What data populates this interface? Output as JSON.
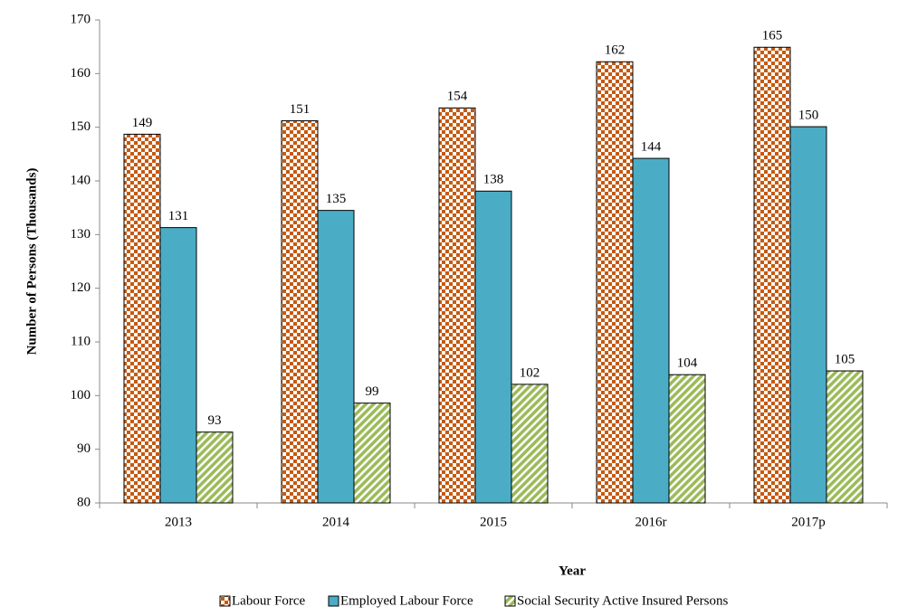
{
  "chart_data": {
    "type": "bar",
    "y_label": "Number of Persons (Thousands)",
    "x_label": "Year",
    "categories": [
      "2013",
      "2014",
      "2015",
      "2016r",
      "2017p"
    ],
    "series": [
      {
        "name": "Labour Force",
        "color": "#c55a11",
        "pattern": "checker",
        "values": [
          148.7,
          151.2,
          153.6,
          162.2,
          164.9
        ],
        "value_labels": [
          "149",
          "151",
          "154",
          "162",
          "165"
        ]
      },
      {
        "name": "Employed Labour Force",
        "color": "#4bacc6",
        "pattern": "solid",
        "values": [
          131.3,
          134.5,
          138.1,
          144.2,
          150.1
        ],
        "value_labels": [
          "131",
          "135",
          "138",
          "144",
          "150"
        ]
      },
      {
        "name": "Social Security Active Insured Persons",
        "color": "#9bbb59",
        "pattern": "diagonal",
        "values": [
          93.2,
          98.6,
          102.1,
          103.9,
          104.6
        ],
        "value_labels": [
          "93",
          "99",
          "102",
          "104",
          "105"
        ]
      }
    ],
    "ylim": [
      80,
      170
    ],
    "yticks": [
      80,
      90,
      100,
      110,
      120,
      130,
      140,
      150,
      160,
      170
    ],
    "grid": false,
    "legend": "bottom"
  }
}
